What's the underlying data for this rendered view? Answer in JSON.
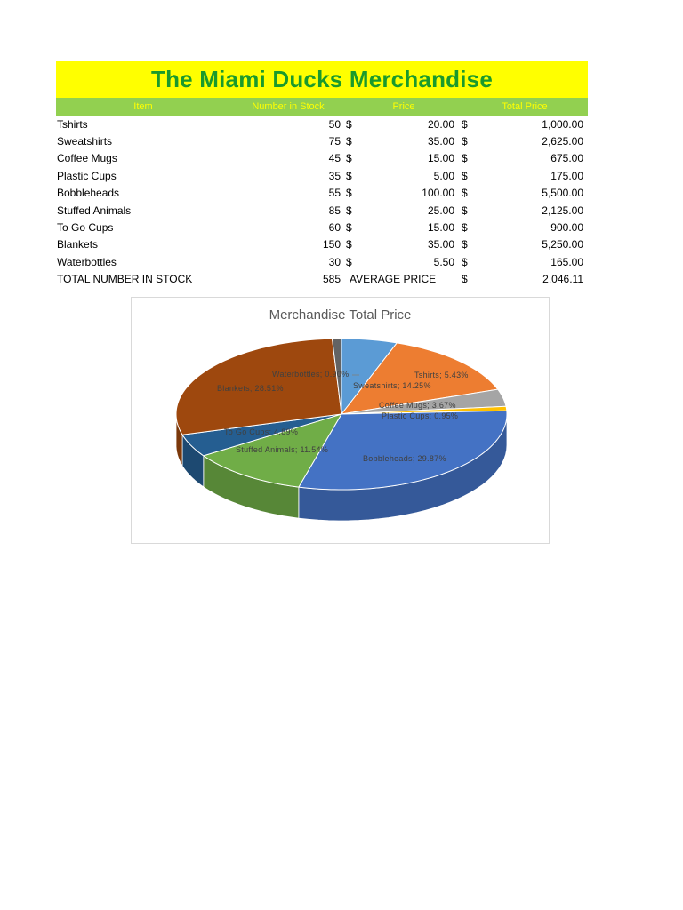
{
  "sheet": {
    "title": "The Miami Ducks Merchandise",
    "headers": {
      "item": "Item",
      "stock": "Number in Stock",
      "price": "Price",
      "total": "Total Price"
    },
    "currency_symbol": "$",
    "rows": [
      {
        "item": "Tshirts",
        "stock": "50",
        "price": "20.00",
        "total": "1,000.00"
      },
      {
        "item": "Sweatshirts",
        "stock": "75",
        "price": "35.00",
        "total": "2,625.00"
      },
      {
        "item": "Coffee Mugs",
        "stock": "45",
        "price": "15.00",
        "total": "675.00"
      },
      {
        "item": "Plastic Cups",
        "stock": "35",
        "price": "5.00",
        "total": "175.00"
      },
      {
        "item": "Bobbleheads",
        "stock": "55",
        "price": "100.00",
        "total": "5,500.00"
      },
      {
        "item": "Stuffed Animals",
        "stock": "85",
        "price": "25.00",
        "total": "2,125.00"
      },
      {
        "item": "To Go Cups",
        "stock": "60",
        "price": "15.00",
        "total": "900.00"
      },
      {
        "item": "Blankets",
        "stock": "150",
        "price": "35.00",
        "total": "5,250.00"
      },
      {
        "item": "Waterbottles",
        "stock": "30",
        "price": "5.50",
        "total": "165.00"
      }
    ],
    "summary": {
      "label": "TOTAL NUMBER IN STOCK",
      "stock_total": "585",
      "avg_label": "AVERAGE PRICE",
      "avg_value": "2,046.11"
    }
  },
  "chart_data": {
    "type": "pie",
    "title": "Merchandise Total Price",
    "categories": [
      "Tshirts",
      "Sweatshirts",
      "Coffee Mugs",
      "Plastic Cups",
      "Bobbleheads",
      "Stuffed Animals",
      "To Go Cups",
      "Blankets",
      "Waterbottles"
    ],
    "values": [
      1000,
      2625,
      675,
      175,
      5500,
      2125,
      900,
      5250,
      165
    ],
    "labels": [
      "Tshirts; 5.43%",
      "Sweatshirts; 14.25%",
      "Coffee Mugs; 3.67%",
      "Plastic Cups; 0.95%",
      "Bobbleheads; 29.87%",
      "Stuffed Animals; 11.54%",
      "To Go Cups; 4.89%",
      "Blankets; 28.51%",
      "Waterbottles; 0.90%"
    ],
    "colors": [
      "#5b9bd5",
      "#ed7d31",
      "#a5a5a5",
      "#ffc000",
      "#4472c4",
      "#70ad47",
      "#255e91",
      "#9e480e",
      "#636363"
    ],
    "style": "3d-pie",
    "legend": "none"
  }
}
